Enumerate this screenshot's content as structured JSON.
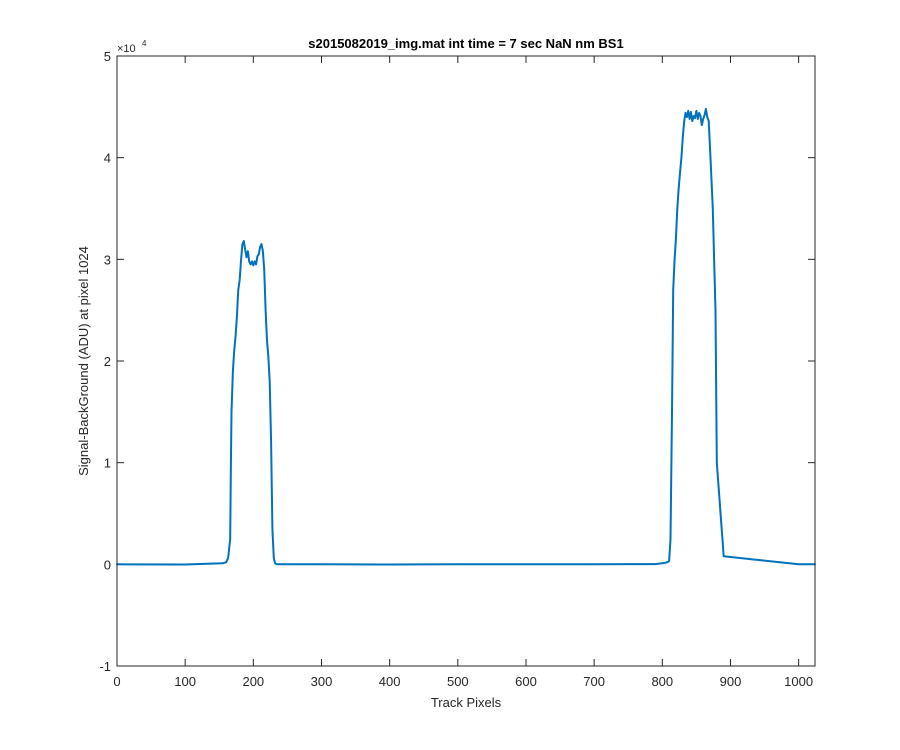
{
  "chart_data": {
    "type": "line",
    "title": "s2015082019_img.mat int time = 7 sec  NaN nm BS1",
    "xlabel": "Track Pixels",
    "ylabel": "Signal-BackGround (ADU) at pixel 1024",
    "xlim": [
      0,
      1024
    ],
    "ylim": [
      -10000,
      50000
    ],
    "xticks": [
      0,
      100,
      200,
      300,
      400,
      500,
      600,
      700,
      800,
      900,
      1000
    ],
    "xtick_labels": [
      "0",
      "100",
      "200",
      "300",
      "400",
      "500",
      "600",
      "700",
      "800",
      "900",
      "1000"
    ],
    "yticks": [
      -10000,
      0,
      10000,
      20000,
      30000,
      40000,
      50000
    ],
    "ytick_labels": [
      "-1",
      "0",
      "1",
      "2",
      "3",
      "4",
      "5"
    ],
    "y_exponent": {
      "base": "×10",
      "power": "4"
    },
    "grid": false,
    "line_color": "#0072BD",
    "series": [
      {
        "x": [
          0,
          100,
          155,
          160,
          163,
          166,
          167,
          168,
          170,
          172,
          174,
          176,
          177,
          178,
          180,
          182,
          184,
          186,
          188,
          190,
          192,
          194,
          196,
          198,
          200,
          202,
          204,
          206,
          208,
          210,
          212,
          214,
          216,
          218,
          220,
          222,
          224,
          226,
          228,
          230,
          232,
          235,
          300,
          400,
          500,
          600,
          700,
          790,
          805,
          810,
          812,
          814,
          816,
          818,
          820,
          822,
          824,
          826,
          828,
          830,
          832,
          834,
          836,
          838,
          840,
          842,
          844,
          846,
          848,
          850,
          852,
          854,
          856,
          858,
          860,
          862,
          864,
          866,
          868,
          870,
          872,
          874,
          876,
          878,
          880,
          890,
          1000,
          1024
        ],
        "y": [
          0,
          -20,
          100,
          200,
          600,
          2500,
          9000,
          15000,
          19000,
          21000,
          22500,
          24500,
          26000,
          27000,
          28000,
          30000,
          31500,
          31800,
          31000,
          30200,
          30800,
          29800,
          29500,
          29800,
          29400,
          29800,
          29500,
          30300,
          30500,
          31200,
          31500,
          30800,
          29000,
          25000,
          22000,
          20500,
          18000,
          12000,
          3500,
          600,
          100,
          0,
          0,
          -20,
          0,
          10,
          0,
          20,
          150,
          300,
          2500,
          14000,
          27000,
          30000,
          32000,
          35000,
          37000,
          38500,
          40000,
          42000,
          43500,
          44400,
          44000,
          44600,
          43800,
          44500,
          43600,
          44100,
          43900,
          44600,
          43800,
          44400,
          44100,
          43200,
          43800,
          44200,
          44800,
          44000,
          43600,
          41000,
          38000,
          35000,
          30000,
          25000,
          10000,
          800,
          0,
          0
        ]
      }
    ]
  }
}
